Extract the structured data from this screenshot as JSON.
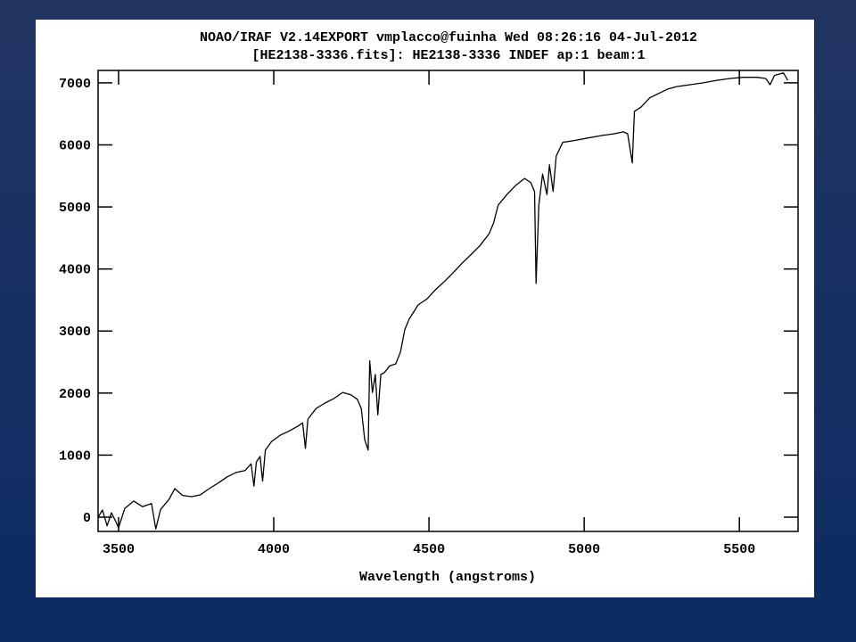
{
  "chart_data": {
    "type": "line",
    "title": "NOAO/IRAF V2.14EXPORT vmplacco@fuinha Wed 08:26:16 04-Jul-2012",
    "subtitle": "[HE2138-3336.fits]: HE2138-3336 INDEF ap:1 beam:1",
    "x_label": "Wavelength (angstroms)",
    "xlim": [
      3434,
      5689
    ],
    "ylim": [
      -230,
      7200
    ],
    "xticks": [
      3500,
      4000,
      4500,
      5000,
      5500
    ],
    "yticks": [
      0,
      1000,
      2000,
      3000,
      4000,
      5000,
      6000,
      7000
    ],
    "x": [
      3434,
      3448,
      3463,
      3477,
      3491,
      3500,
      3520,
      3549,
      3577,
      3606,
      3620,
      3635,
      3663,
      3681,
      3706,
      3735,
      3764,
      3792,
      3821,
      3850,
      3878,
      3907,
      3927,
      3936,
      3944,
      3956,
      3964,
      3973,
      3993,
      4021,
      4050,
      4079,
      4093,
      4102,
      4110,
      4136,
      4165,
      4193,
      4222,
      4249,
      4269,
      4282,
      4293,
      4304,
      4309,
      4318,
      4327,
      4335,
      4345,
      4356,
      4374,
      4393,
      4408,
      4422,
      4436,
      4465,
      4494,
      4522,
      4552,
      4580,
      4608,
      4637,
      4665,
      4694,
      4708,
      4723,
      4751,
      4780,
      4808,
      4828,
      4840,
      4845,
      4854,
      4866,
      4880,
      4888,
      4900,
      4910,
      4931,
      4968,
      5011,
      5054,
      5097,
      5126,
      5140,
      5155,
      5162,
      5183,
      5212,
      5241,
      5269,
      5298,
      5341,
      5384,
      5427,
      5470,
      5513,
      5556,
      5585,
      5599,
      5613,
      5642,
      5656
    ],
    "series": [
      {
        "color": "#000000",
        "values": [
          0,
          115,
          -140,
          70,
          -70,
          -170,
          140,
          260,
          170,
          220,
          -190,
          120,
          290,
          460,
          350,
          330,
          360,
          460,
          550,
          650,
          720,
          750,
          860,
          500,
          890,
          980,
          580,
          1080,
          1220,
          1320,
          1390,
          1470,
          1520,
          1110,
          1580,
          1750,
          1840,
          1910,
          2010,
          1970,
          1900,
          1750,
          1250,
          1080,
          2520,
          2010,
          2300,
          1650,
          2300,
          2330,
          2440,
          2470,
          2660,
          3020,
          3190,
          3420,
          3520,
          3670,
          3810,
          3950,
          4100,
          4240,
          4380,
          4570,
          4740,
          5030,
          5200,
          5350,
          5460,
          5390,
          5250,
          3770,
          5030,
          5530,
          5200,
          5680,
          5250,
          5820,
          6040,
          6070,
          6110,
          6150,
          6180,
          6210,
          6180,
          5710,
          6540,
          6610,
          6760,
          6830,
          6900,
          6940,
          6970,
          7000,
          7040,
          7070,
          7090,
          7090,
          7070,
          6970,
          7120,
          7160,
          7040
        ]
      }
    ]
  }
}
